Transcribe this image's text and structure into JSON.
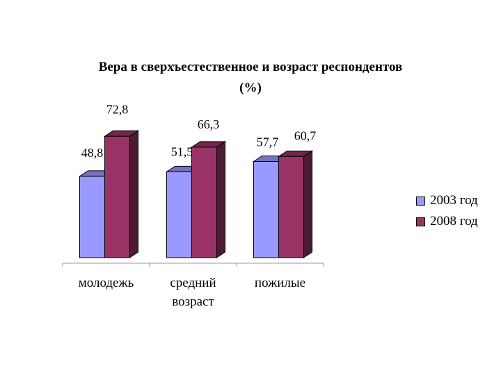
{
  "chart_data": {
    "type": "bar",
    "title_lines": [
      "Вера в сверхъестественное и возраст респондентов",
      "(%)"
    ],
    "categories": [
      [
        "молодежь"
      ],
      [
        "средний",
        "возраст"
      ],
      [
        "пожилые"
      ]
    ],
    "series": [
      {
        "name": "2003 год",
        "values": [
          48.8,
          51.5,
          57.7
        ],
        "labels": [
          "48,8",
          "51,5",
          "57,7"
        ],
        "color": "#9999ff"
      },
      {
        "name": "2008 год",
        "values": [
          72.8,
          66.3,
          60.7
        ],
        "labels": [
          "72,8",
          "66,3",
          "60,7"
        ],
        "color": "#993366"
      }
    ],
    "ylim": [
      0,
      80
    ],
    "grid": false,
    "legend": "right"
  }
}
